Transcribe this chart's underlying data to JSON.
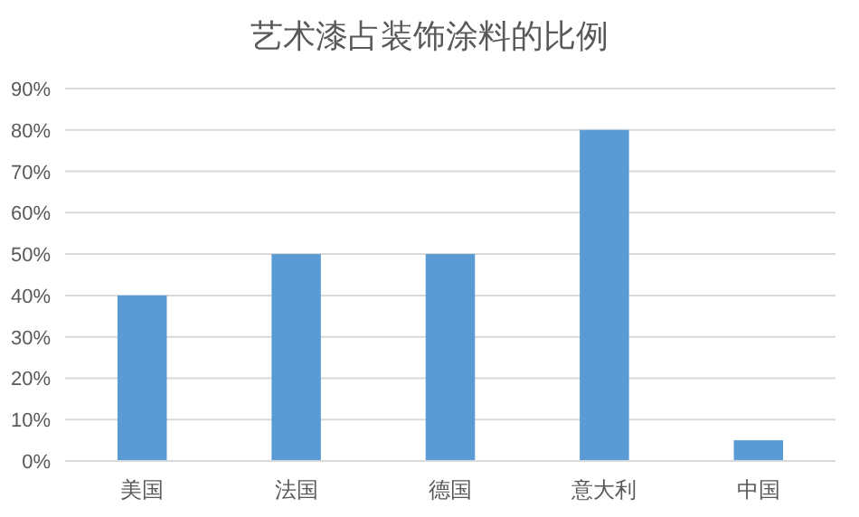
{
  "chart_data": {
    "type": "bar",
    "title": "艺术漆占装饰涂料的比例",
    "categories": [
      "美国",
      "法国",
      "德国",
      "意大利",
      "中国"
    ],
    "values": [
      40,
      50,
      50,
      80,
      5
    ],
    "color": "#5b9bd5",
    "ylim": [
      0,
      90
    ],
    "yticks": [
      {
        "value": 0,
        "label": "0%"
      },
      {
        "value": 10,
        "label": "10%"
      },
      {
        "value": 20,
        "label": "20%"
      },
      {
        "value": 30,
        "label": "30%"
      },
      {
        "value": 40,
        "label": "40%"
      },
      {
        "value": 50,
        "label": "50%"
      },
      {
        "value": 60,
        "label": "60%"
      },
      {
        "value": 70,
        "label": "70%"
      },
      {
        "value": 80,
        "label": "80%"
      },
      {
        "value": 90,
        "label": "90%"
      }
    ],
    "grid": "y"
  }
}
